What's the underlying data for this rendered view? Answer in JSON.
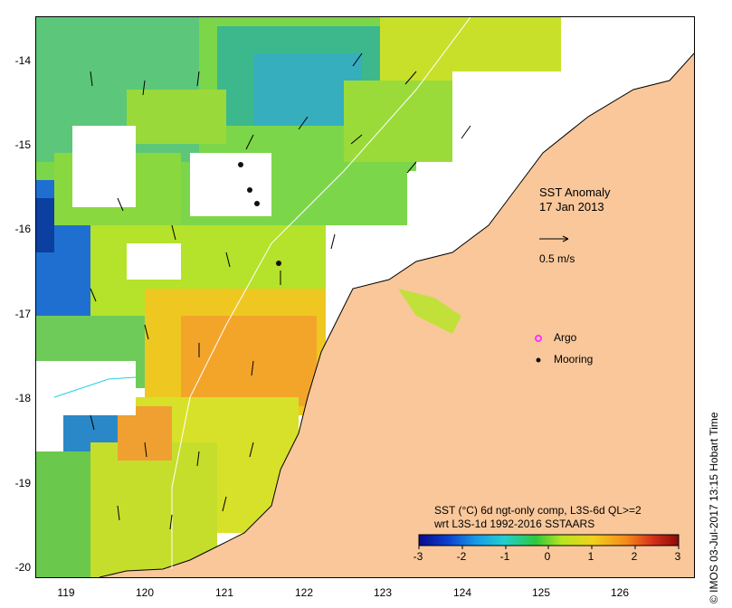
{
  "map": {
    "title": "SST Anomaly",
    "date": "17 Jan 2013",
    "vector_scale_label": "0.5 m/s",
    "legend": {
      "argo_label": "Argo",
      "mooring_label": "Mooring"
    },
    "description_line1": "SST (°C) 6d ngt-only comp, L3S-6d QL>=2",
    "description_line2": "wrt L3S-1d 1992-2016 SSTAARS",
    "credit": "© IMOS 03-Jul-2017 13:15 Hobart Time",
    "colors": {
      "land": "#f9c79a",
      "argo": "#ff33ff",
      "mooring": "#111111"
    }
  },
  "axes": {
    "x_ticks": [
      "119",
      "120",
      "121",
      "122",
      "123",
      "124",
      "125",
      "126"
    ],
    "y_ticks": [
      "-14",
      "-15",
      "-16",
      "-17",
      "-18",
      "-19",
      "-20"
    ]
  },
  "colorbar": {
    "ticks": [
      "-3",
      "-2",
      "-1",
      "0",
      "1",
      "2",
      "3"
    ],
    "range": [
      -3,
      3
    ],
    "colors": [
      "#0a0a8c",
      "#0b3fd0",
      "#1a9ae6",
      "#22cfcf",
      "#2ec83c",
      "#b8e61e",
      "#f2d21a",
      "#f58a1a",
      "#d7301a",
      "#8c0a0a"
    ]
  }
}
